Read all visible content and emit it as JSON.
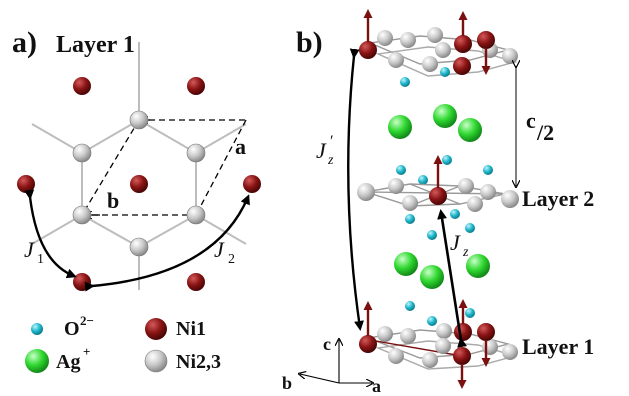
{
  "panel_a": {
    "letter": "a)",
    "title": "Layer 1",
    "label_a": "a",
    "label_b": "b",
    "j1_base": "J",
    "j1_sub": "1",
    "j2_base": "J",
    "j2_sub": "2"
  },
  "panel_b": {
    "letter": "b)",
    "c_half_num": "c",
    "c_half_den": "/2",
    "layer2": "Layer 2",
    "layer1": "Layer 1",
    "jz_base": "J",
    "jz_sub": "z",
    "jzp_base": "J",
    "jzp_sub": "z",
    "jzp_prime": "′",
    "axis_c": "c",
    "axis_b": "b",
    "axis_a": "a"
  },
  "legend": {
    "o_base": "O",
    "o_sup": "2−",
    "ag_base": "Ag",
    "ag_sup": "+",
    "ni1": "Ni1",
    "ni23": "Ni2,3"
  },
  "colors": {
    "ni1": "#7a1010",
    "ni23": "#c8c8c8",
    "oxygen": "#1fb5c8",
    "silver": "#2ed62e",
    "spin_arrow": "#7a1010"
  }
}
